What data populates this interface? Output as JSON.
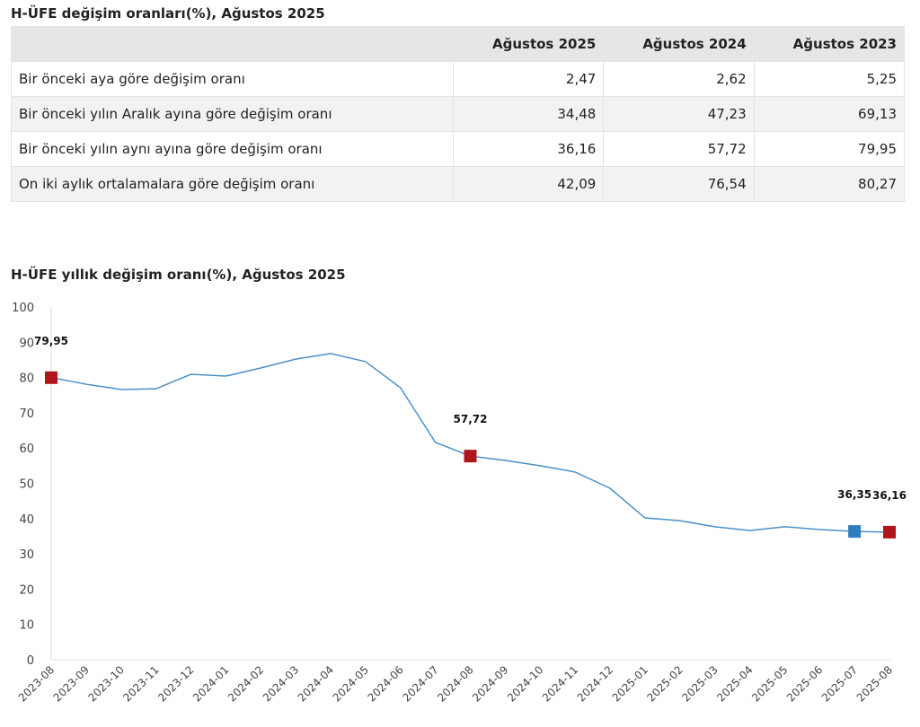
{
  "table": {
    "title": "H-ÜFE değişim oranları(%), Ağustos 2025",
    "headers": [
      "",
      "Ağustos 2025",
      "Ağustos 2024",
      "Ağustos 2023"
    ],
    "rows": [
      {
        "label": "Bir önceki aya göre değişim oranı",
        "values": [
          "2,47",
          "2,62",
          "5,25"
        ]
      },
      {
        "label": "Bir önceki yılın Aralık ayına göre değişim oranı",
        "values": [
          "34,48",
          "47,23",
          "69,13"
        ]
      },
      {
        "label": "Bir önceki yılın aynı ayına göre değişim oranı",
        "values": [
          "36,16",
          "57,72",
          "79,95"
        ]
      },
      {
        "label": "On iki aylık ortalamalara göre değişim oranı",
        "values": [
          "42,09",
          "76,54",
          "80,27"
        ]
      }
    ]
  },
  "chart_data": {
    "type": "line",
    "title": "H-ÜFE yıllık değişim oranı(%), Ağustos 2025",
    "xlabel": "",
    "ylabel": "",
    "ylim": [
      0,
      100
    ],
    "yticks": [
      0,
      10,
      20,
      30,
      40,
      50,
      60,
      70,
      80,
      90,
      100
    ],
    "grid": false,
    "categories": [
      "2023-08",
      "2023-09",
      "2023-10",
      "2023-11",
      "2023-12",
      "2024-01",
      "2024-02",
      "2024-03",
      "2024-04",
      "2024-05",
      "2024-06",
      "2024-07",
      "2024-08",
      "2024-09",
      "2024-10",
      "2024-11",
      "2024-12",
      "2025-01",
      "2025-02",
      "2025-03",
      "2025-04",
      "2025-05",
      "2025-06",
      "2025-07",
      "2025-08"
    ],
    "series": [
      {
        "name": "H-ÜFE yıllık",
        "color": "#4a90c8",
        "values": [
          79.95,
          78.1,
          76.6,
          76.8,
          80.9,
          80.4,
          82.7,
          85.2,
          86.8,
          84.5,
          77.1,
          61.6,
          57.72,
          56.5,
          55.0,
          53.2,
          48.6,
          40.2,
          39.4,
          37.7,
          36.6,
          37.7,
          36.9,
          36.35,
          36.16
        ]
      }
    ],
    "highlights": [
      {
        "index": 0,
        "label": "79,95",
        "color": "#b0151c"
      },
      {
        "index": 12,
        "label": "57,72",
        "color": "#b0151c"
      },
      {
        "index": 23,
        "label": "36,35",
        "color": "#2f7dbd"
      },
      {
        "index": 24,
        "label": "36,16",
        "color": "#b0151c"
      }
    ]
  }
}
